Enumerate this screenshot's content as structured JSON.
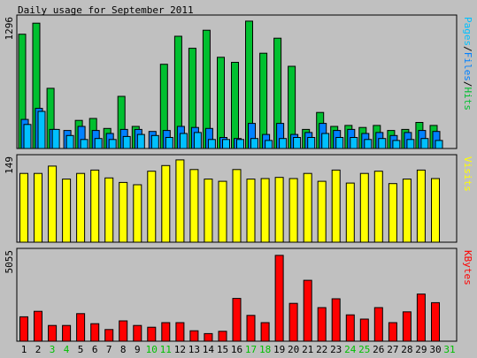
{
  "title": "Daily usage for September 2011",
  "colors": {
    "background": "#c0c0c0",
    "hits": "#00c030",
    "files": "#0080ff",
    "pages": "#00c0ff",
    "visits": "#ffff00",
    "kbytes": "#ff0000",
    "weekend_label": "#00c000",
    "weekday_label": "#000000"
  },
  "chart_data": [
    {
      "type": "bar",
      "panel": "top",
      "y_max_label": "1296",
      "ylim": [
        0,
        1296
      ],
      "side_label_parts": [
        {
          "text": "Pages",
          "color": "#00c0ff"
        },
        {
          "text": "/",
          "color": "#000000"
        },
        {
          "text": "Files",
          "color": "#0080ff"
        },
        {
          "text": "/",
          "color": "#000000"
        },
        {
          "text": "Hits",
          "color": "#00c030"
        }
      ],
      "series": [
        {
          "name": "Hits",
          "color": "#00c030",
          "values": [
            1140,
            1250,
            600,
            0,
            280,
            300,
            200,
            520,
            220,
            0,
            840,
            1120,
            1000,
            1180,
            910,
            860,
            1270,
            950,
            1100,
            820,
            190,
            360,
            220,
            230,
            210,
            230,
            180,
            190,
            260,
            230
          ]
        },
        {
          "name": "Files",
          "color": "#0080ff",
          "values": [
            290,
            400,
            190,
            180,
            220,
            180,
            150,
            190,
            190,
            170,
            180,
            220,
            210,
            200,
            110,
            100,
            250,
            140,
            250,
            140,
            160,
            250,
            180,
            190,
            150,
            160,
            130,
            160,
            180,
            170
          ]
        },
        {
          "name": "Pages",
          "color": "#00c0ff",
          "values": [
            240,
            370,
            190,
            130,
            90,
            100,
            90,
            120,
            140,
            130,
            110,
            150,
            160,
            90,
            90,
            90,
            100,
            80,
            100,
            110,
            110,
            150,
            110,
            110,
            90,
            100,
            80,
            90,
            100,
            80
          ]
        }
      ]
    },
    {
      "type": "bar",
      "panel": "middle",
      "y_max_label": "149",
      "ylim": [
        0,
        149
      ],
      "side_label_parts": [
        {
          "text": "Visits",
          "color": "#ffff00"
        }
      ],
      "series": [
        {
          "name": "Visits",
          "color": "#ffff00",
          "values": [
            122,
            122,
            135,
            112,
            122,
            128,
            114,
            106,
            102,
            126,
            136,
            146,
            129,
            112,
            108,
            129,
            112,
            113,
            115,
            113,
            122,
            108,
            128,
            105,
            122,
            126,
            104,
            112,
            128,
            113
          ]
        }
      ]
    },
    {
      "type": "bar",
      "panel": "bottom",
      "y_max_label": "5055",
      "ylim": [
        0,
        5055
      ],
      "side_label_parts": [
        {
          "text": "KBytes",
          "color": "#ff0000"
        }
      ],
      "series": [
        {
          "name": "KBytes",
          "color": "#ff0000",
          "values": [
            1380,
            1690,
            890,
            890,
            1560,
            990,
            660,
            1150,
            890,
            790,
            1050,
            1050,
            590,
            430,
            560,
            2420,
            1460,
            1050,
            4860,
            2140,
            3450,
            1900,
            2400,
            1490,
            1250,
            1900,
            1050,
            1660,
            2670,
            2180
          ]
        }
      ]
    }
  ],
  "days": [
    "1",
    "2",
    "3",
    "4",
    "5",
    "6",
    "7",
    "8",
    "9",
    "10",
    "11",
    "12",
    "13",
    "14",
    "15",
    "16",
    "17",
    "18",
    "19",
    "20",
    "21",
    "22",
    "23",
    "24",
    "25",
    "26",
    "27",
    "28",
    "29",
    "30",
    "31"
  ],
  "weekend_days": [
    "3",
    "4",
    "10",
    "11",
    "17",
    "18",
    "24",
    "25",
    "31"
  ]
}
